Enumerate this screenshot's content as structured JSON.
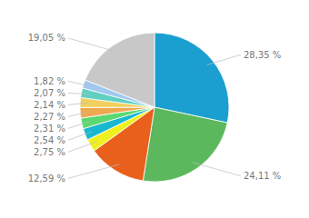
{
  "chart_data": {
    "type": "pie",
    "values": [
      28.35,
      24.11,
      12.59,
      2.75,
      2.54,
      2.31,
      2.27,
      2.14,
      2.07,
      1.82,
      19.05
    ],
    "value_labels": [
      "28,35 %",
      "24,11 %",
      "12,59 %",
      "2,75 %",
      "2,54 %",
      "2,31 %",
      "2,27 %",
      "2,14 %",
      "2,07 %",
      "1,82 %",
      "19,05 %"
    ],
    "colors": [
      "#1a9fd0",
      "#5cb85c",
      "#e8601c",
      "#f0f020",
      "#18b8d0",
      "#5cd870",
      "#f0a850",
      "#f0d060",
      "#60d0c0",
      "#a0c8f0",
      "#c8c8c8"
    ],
    "data_labels": true
  }
}
